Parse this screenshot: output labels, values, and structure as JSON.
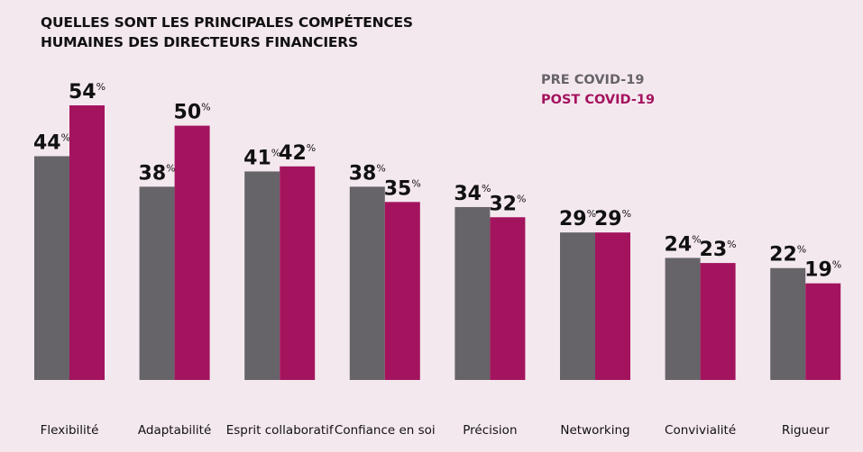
{
  "chart_data": {
    "type": "bar",
    "title_line1": "QUELLES SONT LES PRINCIPALES COMPÉTENCES",
    "title_line2": "HUMAINES DES DIRECTEURS FINANCIERS",
    "categories": [
      "Flexibilité",
      "Adaptabilité",
      "Esprit collaboratif",
      "Confiance en soi",
      "Précision",
      "Networking",
      "Convivialité",
      "Rigueur"
    ],
    "series": [
      {
        "name": "PRE COVID-19",
        "color": "#666369",
        "values": [
          44,
          38,
          41,
          38,
          34,
          29,
          24,
          22
        ]
      },
      {
        "name": "POST COVID-19",
        "color": "#a4145e",
        "values": [
          54,
          50,
          42,
          35,
          32,
          29,
          23,
          19
        ]
      }
    ],
    "unit": "%",
    "ylim": [
      0,
      54
    ],
    "grid": false,
    "legend_position": "top-right"
  }
}
